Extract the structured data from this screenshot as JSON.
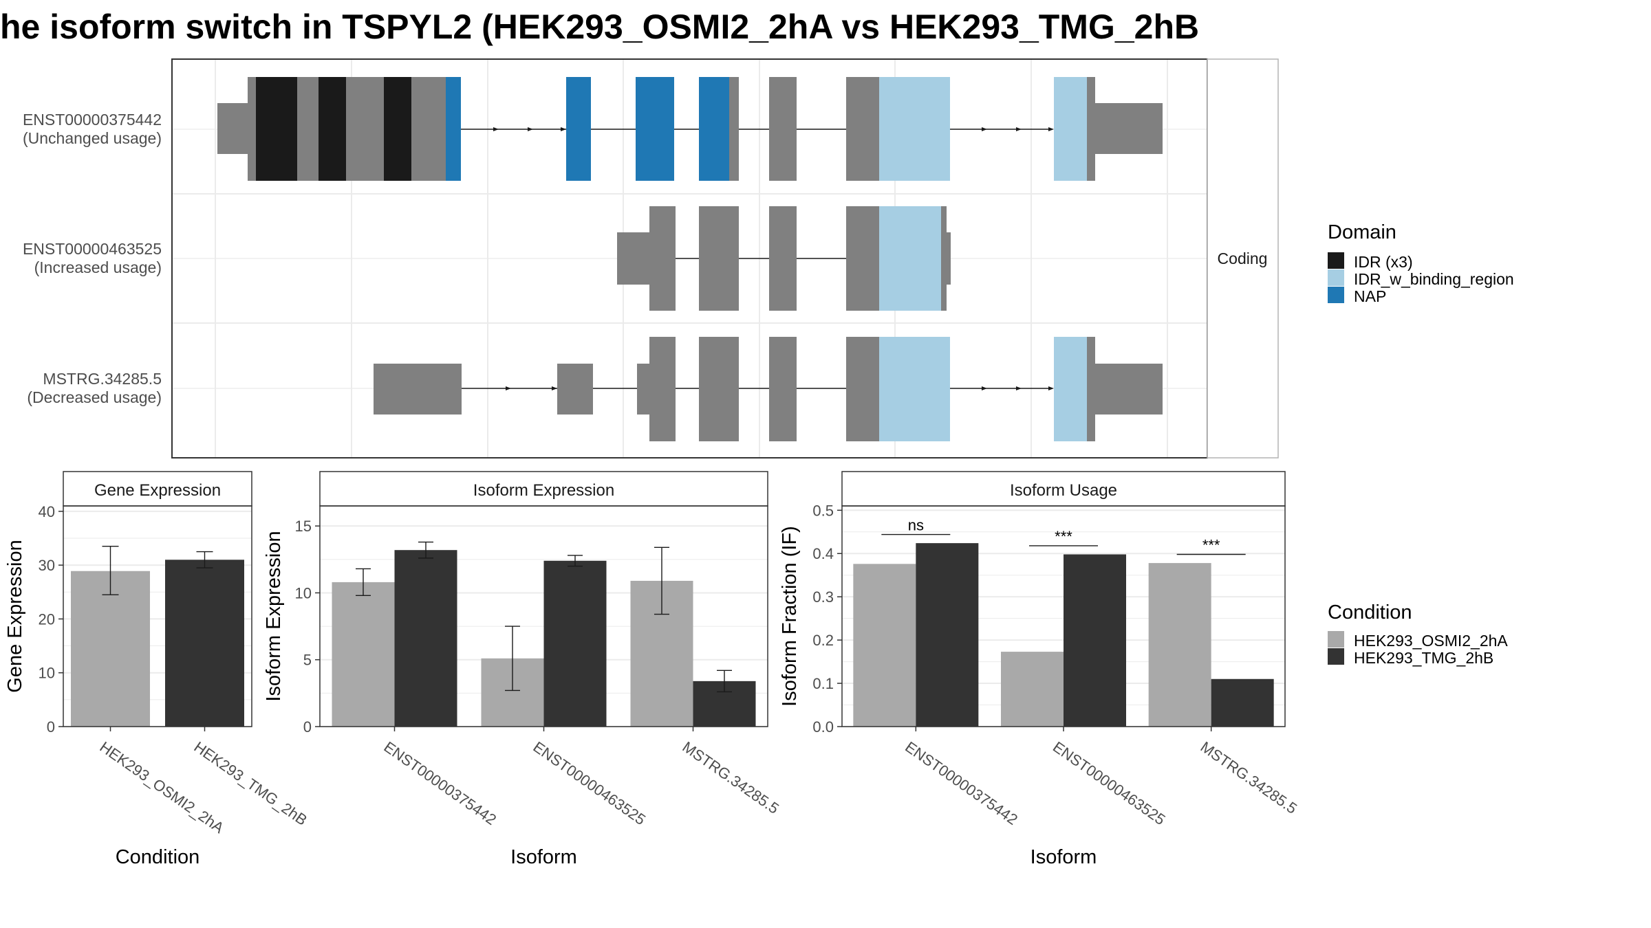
{
  "title": "he isoform switch in TSPYL2 (HEK293_OSMI2_2hA vs HEK293_TMG_2hB",
  "colors": {
    "utr": "#808080",
    "idr": "#1a1a1a",
    "idr_w_binding_region": "#a6cee3",
    "nap": "#1f78b4",
    "cond_a": "#a9a9a9",
    "cond_b": "#333333",
    "grid": "#ebebeb",
    "panel_border": "#333333",
    "strip_fill": "#ffffff"
  },
  "isoform_structure": {
    "strip_label": "Coding",
    "isoforms": [
      {
        "id": "ENST00000375442",
        "usage": "(Unchanged usage)"
      },
      {
        "id": "ENST00000463525",
        "usage": "(Increased usage)"
      },
      {
        "id": "MSTRG.34285.5",
        "usage": "(Decreased usage)"
      }
    ]
  },
  "legend_domain": {
    "title": "Domain",
    "items": [
      {
        "label": "IDR (x3)",
        "color": "#1a1a1a"
      },
      {
        "label": "IDR_w_binding_region",
        "color": "#a6cee3"
      },
      {
        "label": "NAP",
        "color": "#1f78b4"
      }
    ]
  },
  "legend_condition": {
    "title": "Condition",
    "items": [
      {
        "label": "HEK293_OSMI2_2hA",
        "color": "#a9a9a9"
      },
      {
        "label": "HEK293_TMG_2hB",
        "color": "#333333"
      }
    ]
  },
  "chart_data": [
    {
      "type": "bar",
      "title": "Gene Expression",
      "xlabel": "Condition",
      "ylabel": "Gene Expression",
      "ylim": [
        0,
        41
      ],
      "yticks": [
        0,
        10,
        20,
        30,
        40
      ],
      "categories": [
        "HEK293_OSMI2_2hA",
        "HEK293_TMG_2hB"
      ],
      "values": [
        28.9,
        31.0
      ],
      "errors": [
        [
          24.5,
          33.5
        ],
        [
          29.5,
          32.5
        ]
      ]
    },
    {
      "type": "bar",
      "title": "Isoform Expression",
      "xlabel": "Isoform",
      "ylabel": "Isoform Expression",
      "ylim": [
        0,
        16.5
      ],
      "yticks": [
        0,
        5,
        10,
        15
      ],
      "categories": [
        "ENST00000375442",
        "ENST00000463525",
        "MSTRG.34285.5"
      ],
      "series": [
        {
          "name": "HEK293_OSMI2_2hA",
          "values": [
            10.8,
            5.1,
            10.9
          ],
          "errors": [
            [
              9.8,
              11.8
            ],
            [
              2.7,
              7.5
            ],
            [
              8.4,
              13.4
            ]
          ]
        },
        {
          "name": "HEK293_TMG_2hB",
          "values": [
            13.2,
            12.4,
            3.4
          ],
          "errors": [
            [
              12.6,
              13.8
            ],
            [
              12.0,
              12.8
            ],
            [
              2.6,
              4.2
            ]
          ]
        }
      ]
    },
    {
      "type": "bar",
      "title": "Isoform Usage",
      "xlabel": "Isoform",
      "ylabel": "Isoform Fraction (IF)",
      "ylim": [
        0,
        0.51
      ],
      "yticks": [
        0.0,
        0.1,
        0.2,
        0.3,
        0.4,
        0.5
      ],
      "ytick_labels": [
        "0.0",
        "0.1",
        "0.2",
        "0.3",
        "0.4",
        "0.5"
      ],
      "categories": [
        "ENST00000375442",
        "ENST00000463525",
        "MSTRG.34285.5"
      ],
      "series": [
        {
          "name": "HEK293_OSMI2_2hA",
          "values": [
            0.376,
            0.173,
            0.378
          ]
        },
        {
          "name": "HEK293_TMG_2hB",
          "values": [
            0.424,
            0.398,
            0.11
          ]
        }
      ],
      "significance": [
        "ns",
        "***",
        "***"
      ]
    }
  ]
}
